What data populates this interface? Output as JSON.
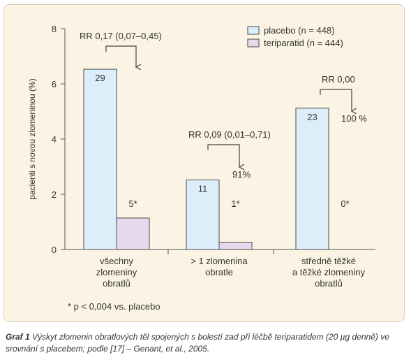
{
  "chart_data": {
    "type": "bar",
    "ylabel": "pacienti s novou zlomeninou (%)",
    "ylim": [
      0,
      8
    ],
    "y_ticks": [
      "0",
      "2",
      "4",
      "6",
      "8"
    ],
    "categories": [
      [
        "všechny",
        "zlomeniny",
        "obratlů"
      ],
      [
        "> 1 zlomenina",
        "obratle"
      ],
      [
        "středně těžké",
        "a těžké zlomeniny",
        "obratlů"
      ]
    ],
    "series": [
      {
        "name": "placebo (n = 448)",
        "color": "#dbeefa",
        "values": [
          6.53,
          2.52,
          5.12
        ],
        "labels": [
          "29",
          "11",
          "23"
        ]
      },
      {
        "name": "teriparatid (n = 444)",
        "color": "#e6d9ec",
        "values": [
          1.14,
          0.26,
          0.0
        ],
        "labels": [
          "5*",
          "1*",
          "0*"
        ]
      }
    ],
    "annotations": [
      {
        "text": "RR 0,17 (0,07–0,45)",
        "reduction": ""
      },
      {
        "text": "RR 0,09 (0,01–0,71)",
        "reduction": "91%"
      },
      {
        "text": "RR 0,00",
        "reduction": "100 %"
      }
    ],
    "footnote": "* p < 0,004 vs. placebo",
    "grid": false,
    "legend_position": "top-right"
  },
  "caption": {
    "label": "Graf 1",
    "text": "Výskyt zlomenin obratlových těl spojených s bolestí zad při léčbě teriparatidem (20 µg denně) ve srovnání s placebem; podle [17] – Genant, et al., 2005."
  }
}
